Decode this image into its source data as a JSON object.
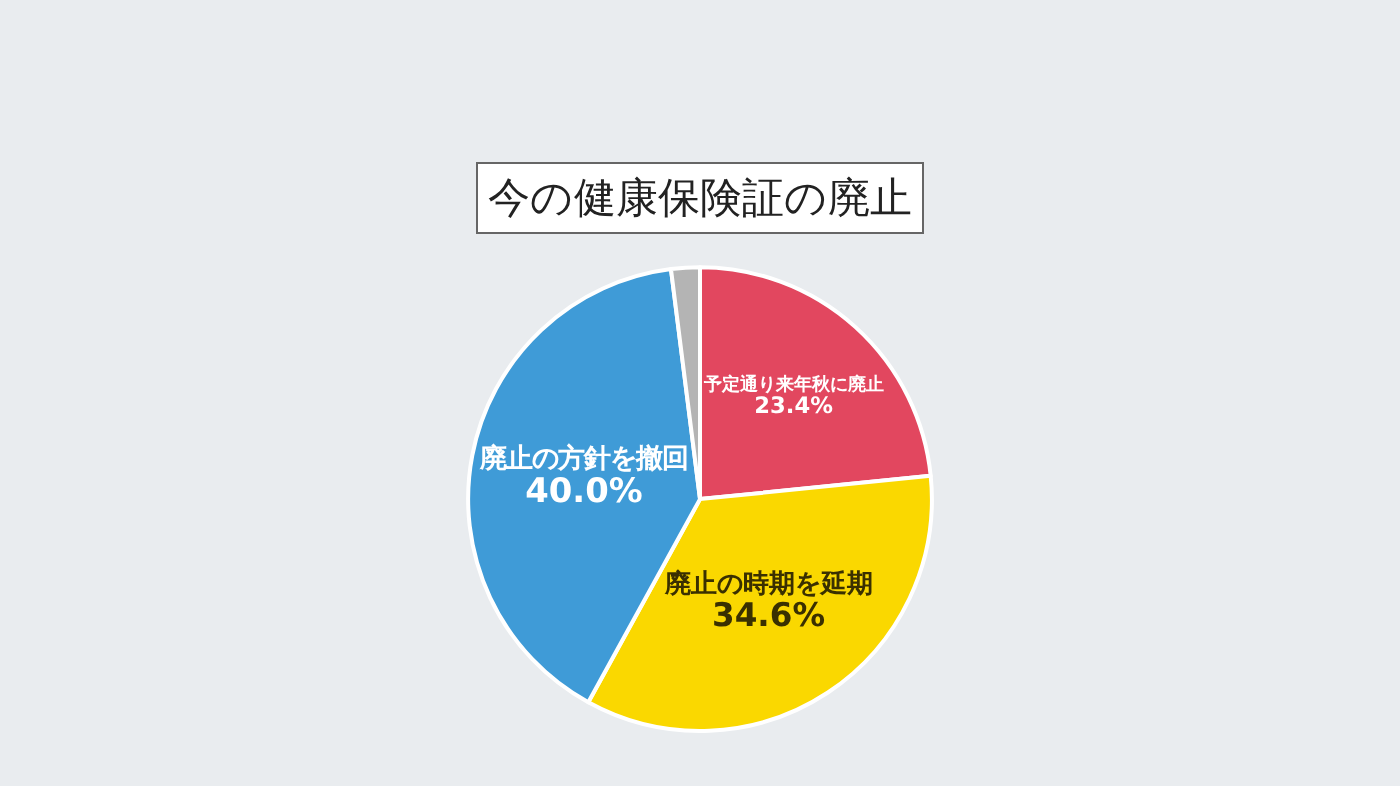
{
  "chart_data": {
    "type": "pie",
    "title": "今の健康保険証の廃止",
    "categories": [
      "予定通り来年秋に廃止",
      "廃止の時期を延期",
      "廃止の方針を撤回",
      null
    ],
    "values": [
      23.4,
      34.6,
      40.0,
      2.0
    ],
    "value_labels": [
      "23.4%",
      "34.6%",
      "40.0%",
      null
    ],
    "colors": [
      "#e2475f",
      "#fad800",
      "#3f9bd7",
      "#b4b4b4"
    ],
    "legend": false
  }
}
